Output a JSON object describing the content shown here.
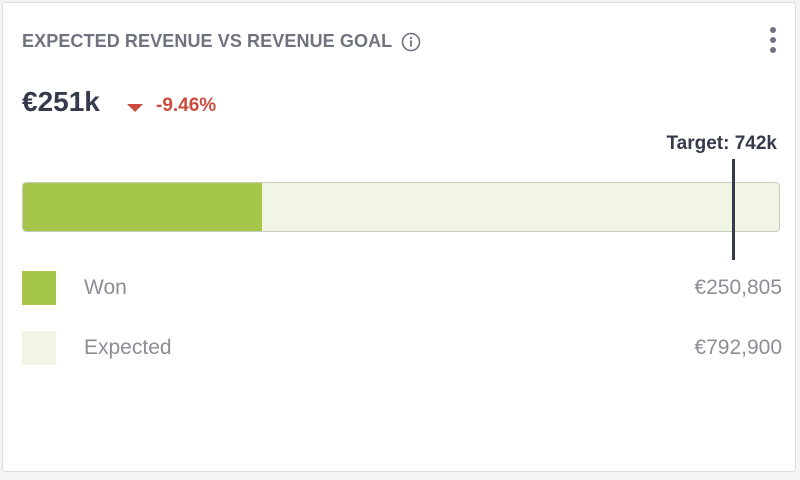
{
  "widget": {
    "title": "EXPECTED REVENUE VS REVENUE GOAL",
    "info_icon": "info-icon",
    "menu_icon": "kebab-menu-icon"
  },
  "summary": {
    "value": "€251k",
    "change": "-9.46%",
    "change_direction": "down",
    "change_color": "#cc4b3e"
  },
  "target": {
    "label": "Target: 742k",
    "value": 742000
  },
  "progress": {
    "won_value": 250805,
    "expected_value": 792900,
    "won_color": "#a5c64a",
    "expected_color": "#f0f6e3"
  },
  "legend": [
    {
      "label": "Won",
      "value": "€250,805",
      "color": "#a5c64a"
    },
    {
      "label": "Expected",
      "value": "€792,900",
      "color": "#f0f6e3"
    }
  ]
}
